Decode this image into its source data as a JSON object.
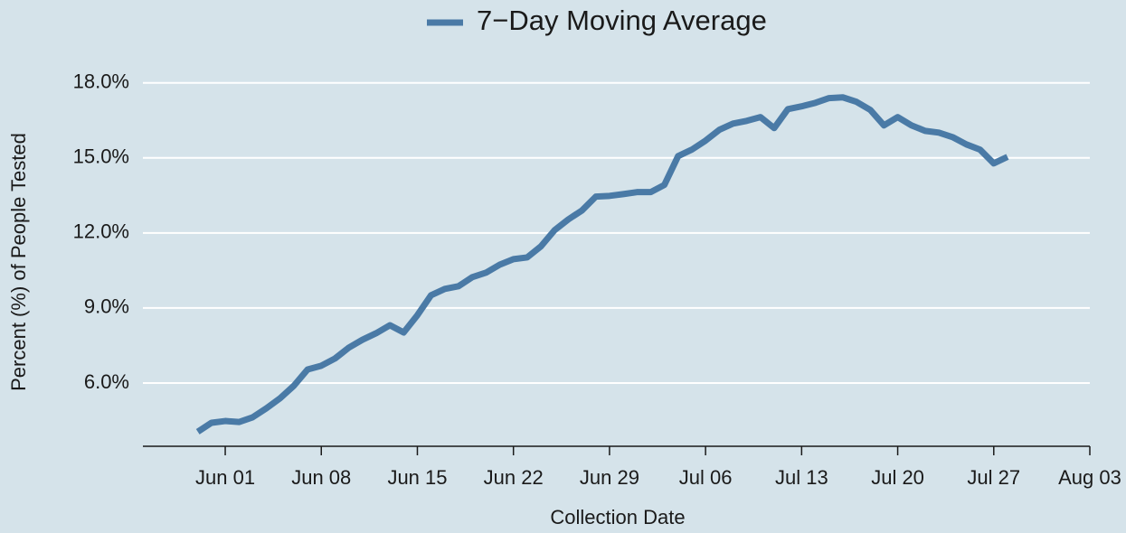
{
  "chart_data": {
    "type": "line",
    "xlabel": "Collection Date",
    "ylabel": "Percent (%) of People Tested",
    "legend": "top",
    "grid": true,
    "x": [
      "May 30",
      "May 31",
      "Jun 01",
      "Jun 02",
      "Jun 03",
      "Jun 04",
      "Jun 05",
      "Jun 06",
      "Jun 07",
      "Jun 08",
      "Jun 09",
      "Jun 10",
      "Jun 11",
      "Jun 12",
      "Jun 13",
      "Jun 14",
      "Jun 15",
      "Jun 16",
      "Jun 17",
      "Jun 18",
      "Jun 19",
      "Jun 20",
      "Jun 21",
      "Jun 22",
      "Jun 23",
      "Jun 24",
      "Jun 25",
      "Jun 26",
      "Jun 27",
      "Jun 28",
      "Jun 29",
      "Jun 30",
      "Jul 01",
      "Jul 02",
      "Jul 03",
      "Jul 04",
      "Jul 05",
      "Jul 06",
      "Jul 07",
      "Jul 08",
      "Jul 09",
      "Jul 10",
      "Jul 11",
      "Jul 12",
      "Jul 13",
      "Jul 14",
      "Jul 15",
      "Jul 16",
      "Jul 17",
      "Jul 18",
      "Jul 19",
      "Jul 20",
      "Jul 21",
      "Jul 22",
      "Jul 23",
      "Jul 24",
      "Jul 25",
      "Jul 26",
      "Jul 27",
      "Jul 28"
    ],
    "series": [
      {
        "name": "7−Day Moving Average",
        "color": "#4a7aa6",
        "values": [
          4.05,
          4.41,
          4.48,
          4.44,
          4.63,
          4.99,
          5.39,
          5.89,
          6.54,
          6.69,
          6.98,
          7.41,
          7.73,
          7.99,
          8.31,
          8.02,
          8.71,
          9.51,
          9.76,
          9.87,
          10.23,
          10.41,
          10.73,
          10.95,
          11.02,
          11.46,
          12.11,
          12.54,
          12.9,
          13.45,
          13.48,
          13.55,
          13.63,
          13.63,
          13.92,
          15.07,
          15.33,
          15.69,
          16.12,
          16.37,
          16.48,
          16.63,
          16.19,
          16.95,
          17.06,
          17.2,
          17.39,
          17.42,
          17.24,
          16.92,
          16.3,
          16.63,
          16.3,
          16.08,
          16.01,
          15.83,
          15.54,
          15.33,
          14.78,
          15.04
        ]
      }
    ],
    "xlim": [
      "May 26",
      "Aug 03"
    ],
    "xticks": [
      "Jun 01",
      "Jun 08",
      "Jun 15",
      "Jun 22",
      "Jun 29",
      "Jul 06",
      "Jul 13",
      "Jul 20",
      "Jul 27",
      "Aug 03"
    ],
    "ylim": [
      3.47,
      19
    ],
    "yticks": [
      {
        "value": 6,
        "label": "6.0%"
      },
      {
        "value": 9,
        "label": "9.0%"
      },
      {
        "value": 12,
        "label": "12.0%"
      },
      {
        "value": 15,
        "label": "15.0%"
      },
      {
        "value": 18,
        "label": "18.0%"
      }
    ]
  }
}
